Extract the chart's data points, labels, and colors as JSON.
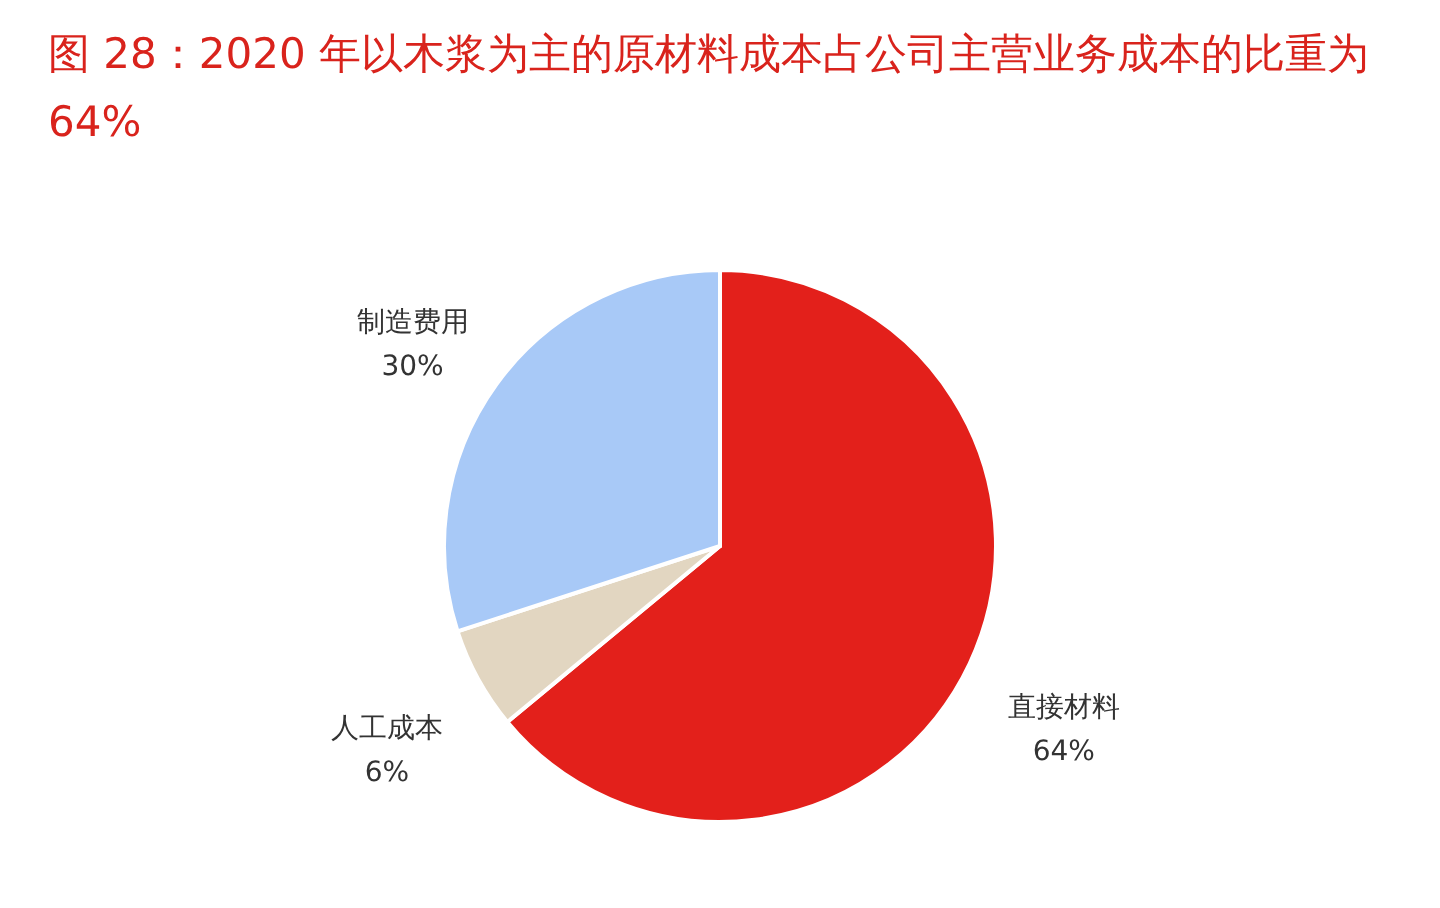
{
  "chart_data": {
    "type": "pie",
    "title": "图 28：2020 年以木浆为主的原材料成本占公司主营业务成本的比重为 64%",
    "categories": [
      "直接材料",
      "人工成本",
      "制造费用"
    ],
    "values": [
      64,
      6,
      30
    ],
    "value_labels": [
      "64%",
      "6%",
      "30%"
    ],
    "colors": [
      "#e3201b",
      "#e2d6c1",
      "#a8c9f7"
    ],
    "legend": false
  }
}
